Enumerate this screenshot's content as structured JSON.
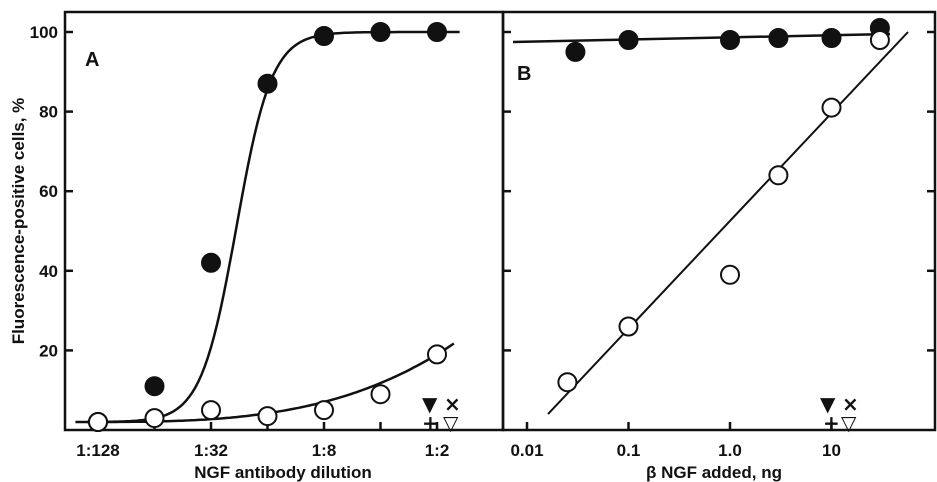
{
  "chart_data": [
    {
      "panel": "A",
      "type": "scatter",
      "ylabel": "Fluorescence-positive cells, %",
      "xlabel": "NGF antibody dilution",
      "x_scale": "log2",
      "ylim": [
        0,
        100
      ],
      "yticks": [
        20,
        40,
        60,
        80,
        100
      ],
      "xticks": [
        "1:128",
        "1:32",
        "1:8",
        "1:2"
      ],
      "series": [
        {
          "marker": "filled-circle",
          "x": [
            "1:128",
            "1:64",
            "1:32",
            "1:16",
            "1:8",
            "1:4",
            "1:2"
          ],
          "y": [
            2,
            11,
            42,
            87,
            99,
            100,
            100
          ]
        },
        {
          "marker": "open-circle",
          "x": [
            "1:128",
            "1:64",
            "1:32",
            "1:16",
            "1:8",
            "1:4",
            "1:2"
          ],
          "y": [
            2,
            3,
            5,
            3.5,
            5,
            9,
            19
          ]
        }
      ],
      "symbol_key": [
        "▼",
        "×",
        "+",
        "▽"
      ]
    },
    {
      "panel": "B",
      "type": "scatter",
      "xlabel": "β NGF added, ng",
      "x_scale": "log10",
      "ylim": [
        0,
        100
      ],
      "xticks": [
        "0.01",
        "0.1",
        "1.0",
        "10"
      ],
      "series": [
        {
          "marker": "filled-circle",
          "x": [
            0.03,
            0.1,
            1.0,
            3.0,
            10,
            30
          ],
          "y": [
            95,
            98,
            98,
            98.5,
            98.5,
            101
          ]
        },
        {
          "marker": "open-circle",
          "x": [
            0.025,
            0.1,
            1.0,
            3.0,
            10,
            30
          ],
          "y": [
            12,
            26,
            39,
            64,
            81,
            98
          ]
        }
      ],
      "symbol_key": [
        "▼",
        "×",
        "+",
        "▽"
      ]
    }
  ]
}
